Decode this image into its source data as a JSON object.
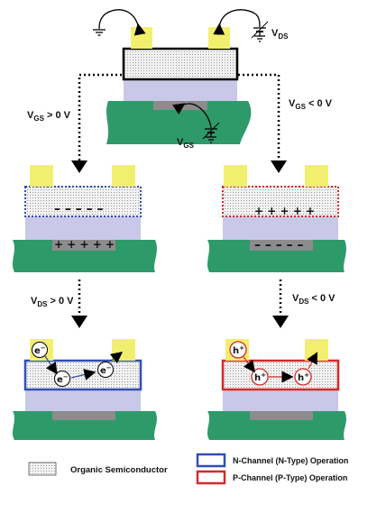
{
  "labels": {
    "vgs_pos": "V",
    "vgs_pos_sub": "GS",
    "vgs_pos_val": " > 0 V",
    "vgs_neg": "V",
    "vgs_neg_sub": "GS",
    "vgs_neg_val": " < 0 V",
    "vds_pos": "V",
    "vds_pos_sub": "DS",
    "vds_pos_val": " > 0 V",
    "vds_neg": "V",
    "vds_neg_sub": "DS",
    "vds_neg_val": " < 0 V",
    "vds_top": "V",
    "vds_top_sub": "DS",
    "vgs_mid": "V",
    "vgs_mid_sub": "GS"
  },
  "charges": {
    "n_semiconductor": "– – – – –",
    "n_gate": "+ + + + +",
    "p_semiconductor": "+ + + + +",
    "p_gate": "– – – – –"
  },
  "carriers": {
    "electron": "e",
    "electron_sup": "−",
    "hole": "h",
    "hole_sup": "+"
  },
  "legend": {
    "organic": "Organic Semiconductor",
    "n_channel": "N-Channel (N-Type) Operation",
    "p_channel": "P-Channel (P-Type) Operation"
  },
  "colors": {
    "electrode": "#f3ef6e",
    "substrate": "#2e9a6a",
    "dielectric": "#c9c8e8",
    "gate": "#8c8c8c",
    "n_channel": "#2f4fb0",
    "p_channel": "#d42a2a",
    "semiconductor": "#e4e4e4"
  }
}
